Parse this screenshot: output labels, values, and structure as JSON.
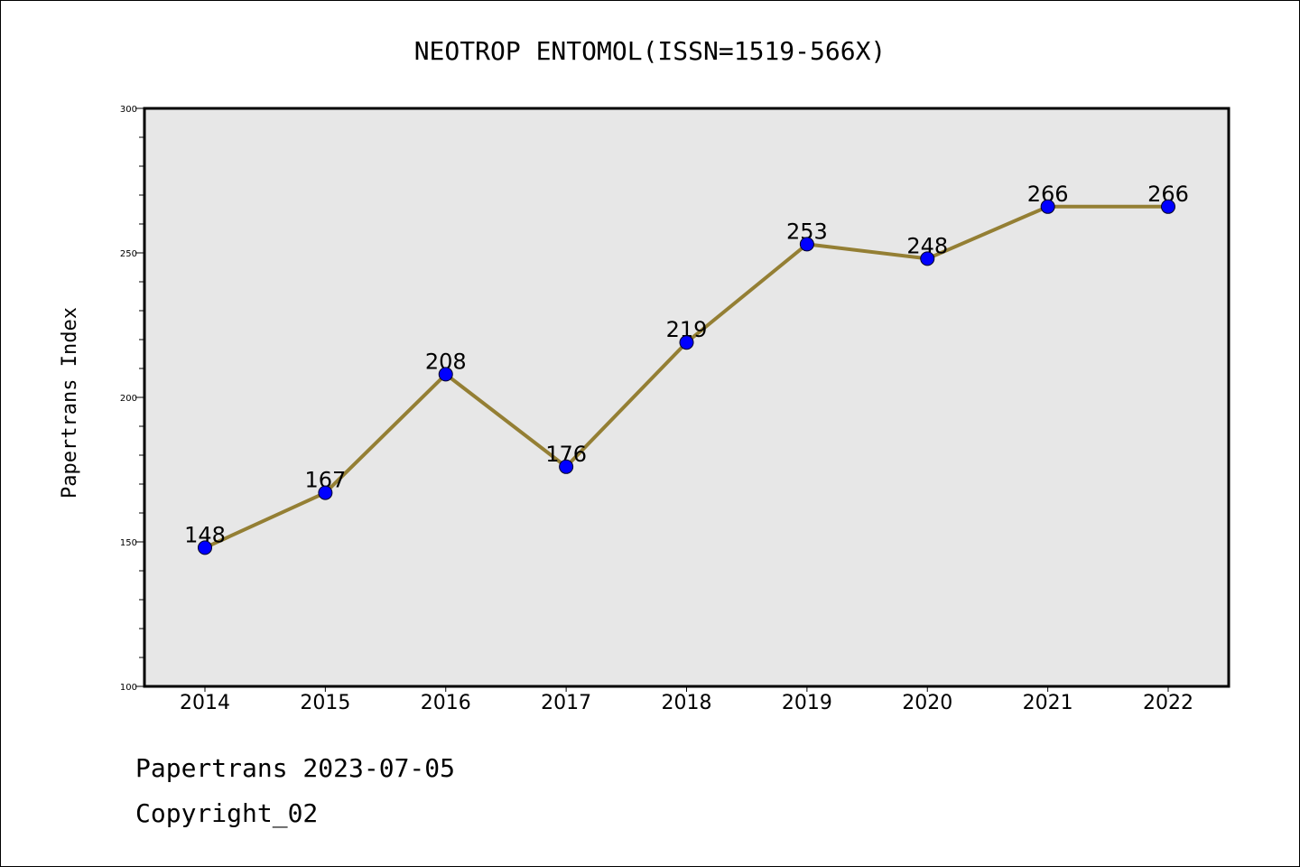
{
  "chart_data": {
    "type": "line",
    "title": "NEOTROP ENTOMOL(ISSN=1519-566X)",
    "xlabel": "",
    "ylabel": "Papertrans Index",
    "categories": [
      "2014",
      "2015",
      "2016",
      "2017",
      "2018",
      "2019",
      "2020",
      "2021",
      "2022"
    ],
    "series": [
      {
        "values": [
          148,
          167,
          208,
          176,
          219,
          253,
          248,
          266,
          266
        ]
      }
    ],
    "ylim": [
      100,
      300
    ],
    "yticks": [
      100,
      150,
      200,
      250,
      300
    ],
    "y_minor_step": 10,
    "grid": false,
    "data_labels": true,
    "colors": {
      "line": "#947f34",
      "marker": "#0000ff",
      "plot_background": "#e7e7e7",
      "page_background": "#ffffff"
    }
  },
  "footer": {
    "line1": "Papertrans 2023-07-05",
    "line2": "Copyright_02"
  }
}
